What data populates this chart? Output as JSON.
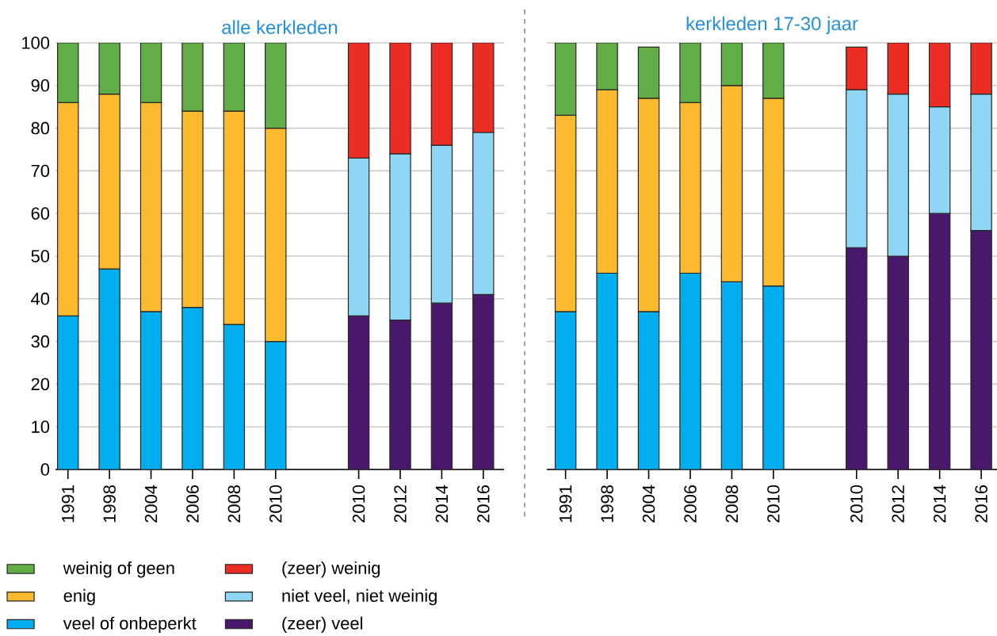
{
  "chart_data": [
    {
      "type": "bar",
      "title": "alle kerkleden",
      "stacked": true,
      "grid": "y",
      "legend": "bottom",
      "categories": [
        "1991",
        "1998",
        "2004",
        "2006",
        "2008",
        "2010",
        null,
        "2010",
        "2012",
        "2014",
        "2016"
      ],
      "ylim": [
        0,
        100
      ],
      "yticks": [
        0,
        10,
        20,
        30,
        40,
        50,
        60,
        70,
        80,
        90,
        100
      ],
      "series": [
        {
          "name": "veel of onbeperkt",
          "color": "#00aeef",
          "values": [
            36,
            47,
            37,
            38,
            34,
            30,
            null,
            null,
            null,
            null,
            null
          ]
        },
        {
          "name": "enig",
          "color": "#fbb92e",
          "values": [
            50,
            41,
            49,
            46,
            50,
            50,
            null,
            null,
            null,
            null,
            null
          ]
        },
        {
          "name": "weinig of geen",
          "color": "#62ad46",
          "values": [
            14,
            12,
            14,
            16,
            16,
            20,
            null,
            null,
            null,
            null,
            null
          ]
        },
        {
          "name": "(zeer) veel",
          "color": "#4a186b",
          "values": [
            null,
            null,
            null,
            null,
            null,
            null,
            null,
            36,
            35,
            39,
            41
          ]
        },
        {
          "name": "niet veel, niet weinig",
          "color": "#8fd6f5",
          "values": [
            null,
            null,
            null,
            null,
            null,
            null,
            null,
            37,
            39,
            37,
            38
          ]
        },
        {
          "name": "(zeer) weinig",
          "color": "#ec2d24",
          "values": [
            null,
            null,
            null,
            null,
            null,
            null,
            null,
            27,
            26,
            24,
            21
          ]
        }
      ]
    },
    {
      "type": "bar",
      "title": "kerkleden 17-30 jaar",
      "stacked": true,
      "grid": "y",
      "tick_labels": "x",
      "categories": [
        "1991",
        "1998",
        "2004",
        "2006",
        "2008",
        "2010",
        null,
        "2010",
        "2012",
        "2014",
        "2016"
      ],
      "ylim": [
        0,
        100
      ],
      "yticks": [
        0,
        10,
        20,
        30,
        40,
        50,
        60,
        70,
        80,
        90,
        100
      ],
      "series": [
        {
          "color": "#00aeef",
          "values": [
            37,
            46,
            37,
            46,
            44,
            43,
            null,
            null,
            null,
            null,
            null
          ]
        },
        {
          "color": "#fbb92e",
          "values": [
            46,
            43,
            50,
            40,
            46,
            44,
            null,
            null,
            null,
            null,
            null
          ]
        },
        {
          "color": "#62ad46",
          "values": [
            17,
            11,
            12,
            14,
            10,
            13,
            null,
            null,
            null,
            null,
            null
          ]
        },
        {
          "color": "#4a186b",
          "values": [
            null,
            null,
            null,
            null,
            null,
            null,
            null,
            52,
            50,
            60,
            56
          ]
        },
        {
          "color": "#8fd6f5",
          "values": [
            null,
            null,
            null,
            null,
            null,
            null,
            null,
            37,
            38,
            25,
            32
          ]
        },
        {
          "color": "#ec2d24",
          "values": [
            null,
            null,
            null,
            null,
            null,
            null,
            null,
            10,
            12,
            15,
            12
          ]
        }
      ]
    }
  ]
}
